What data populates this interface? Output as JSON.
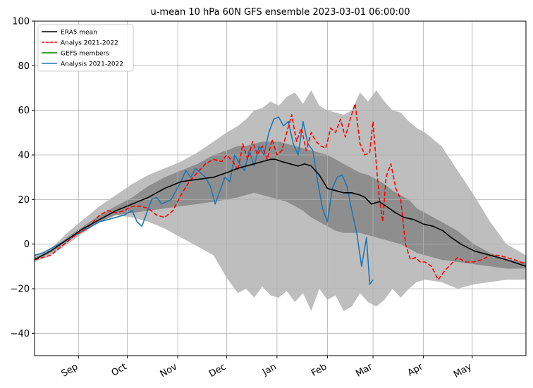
{
  "chart_data": {
    "type": "line",
    "title": "u-mean 10 hPa 60N GFS ensemble 2023-03-01 06:00:00",
    "xlabel": "",
    "ylabel": "",
    "ylim": [
      -50,
      100
    ],
    "xlim": [
      0,
      302
    ],
    "y_ticks": [
      -40,
      -20,
      0,
      20,
      40,
      60,
      80,
      100
    ],
    "x_ticks": [
      {
        "label": "Sep",
        "day": 27
      },
      {
        "label": "Oct",
        "day": 57
      },
      {
        "label": "Nov",
        "day": 88
      },
      {
        "label": "Dec",
        "day": 118
      },
      {
        "label": "Jan",
        "day": 149
      },
      {
        "label": "Feb",
        "day": 180
      },
      {
        "label": "Mar",
        "day": 208
      },
      {
        "label": "Apr",
        "day": 239
      },
      {
        "label": "May",
        "day": 269
      }
    ],
    "grid": true,
    "legend_position": "top-left",
    "legend": [
      {
        "label": "ERA5 mean",
        "color": "#000000",
        "dash": "solid"
      },
      {
        "label": "Analys 2021-2022",
        "color": "#ff0000",
        "dash": "dashed"
      },
      {
        "label": "GEFS members",
        "color": "#008000",
        "dash": "solid"
      },
      {
        "label": "Analysis 2021-2022",
        "color": "#1f77b4",
        "dash": "solid"
      }
    ],
    "bands": [
      {
        "color": "#bebebe",
        "x": [
          0,
          10,
          20,
          30,
          40,
          50,
          60,
          70,
          80,
          90,
          100,
          110,
          118,
          125,
          130,
          135,
          140,
          145,
          150,
          155,
          160,
          165,
          170,
          175,
          180,
          185,
          190,
          195,
          200,
          205,
          210,
          215,
          220,
          225,
          230,
          235,
          240,
          250,
          260,
          270,
          280,
          290,
          302
        ],
        "upper": [
          -5,
          -2,
          5,
          11,
          17,
          22,
          27,
          31,
          34,
          37,
          41,
          46,
          50,
          53,
          56,
          60,
          61,
          64,
          62,
          66,
          68,
          63,
          69,
          62,
          60,
          59,
          58,
          60,
          68,
          64,
          69,
          64,
          60,
          59,
          55,
          52,
          50,
          44,
          33,
          22,
          10,
          0,
          -5
        ],
        "lower": [
          -8,
          -5,
          0,
          5,
          10,
          13,
          12,
          10,
          7,
          3,
          -1,
          -5,
          -15,
          -22,
          -20,
          -24,
          -19,
          -23,
          -24,
          -21,
          -26,
          -22,
          -30,
          -20,
          -25,
          -23,
          -30,
          -28,
          -22,
          -26,
          -28,
          -25,
          -20,
          -24,
          -20,
          -17,
          -16,
          -17,
          -20,
          -18,
          -17,
          -16,
          -16
        ]
      },
      {
        "color": "#8e8e8e",
        "x": [
          0,
          10,
          20,
          30,
          40,
          50,
          60,
          70,
          80,
          90,
          100,
          110,
          118,
          125,
          130,
          135,
          140,
          145,
          150,
          155,
          160,
          165,
          170,
          175,
          180,
          185,
          190,
          195,
          200,
          205,
          210,
          215,
          220,
          225,
          230,
          235,
          240,
          250,
          260,
          270,
          280,
          290,
          302
        ],
        "upper": [
          -6,
          -3,
          3,
          8,
          13,
          17,
          21,
          26,
          30,
          33,
          36,
          40,
          42,
          44,
          44,
          45,
          46,
          46,
          46,
          45,
          44,
          43,
          42,
          41,
          40,
          38,
          36,
          34,
          32,
          31,
          29,
          27,
          24,
          22,
          20,
          16,
          14,
          10,
          6,
          0,
          -4,
          -7,
          -8
        ],
        "lower": [
          -7,
          -4,
          1,
          6,
          10,
          13,
          14,
          15,
          16,
          17,
          18,
          19,
          20,
          21,
          22,
          23,
          22,
          21,
          20,
          19,
          17,
          15,
          12,
          10,
          8,
          6,
          5,
          5,
          5,
          4,
          3,
          2,
          1,
          0,
          -2,
          -4,
          -5,
          -7,
          -8,
          -9,
          -10,
          -11,
          -11
        ]
      }
    ],
    "series": [
      {
        "name": "ERA5 mean",
        "color": "#000000",
        "dash": "solid",
        "x": [
          0,
          10,
          20,
          30,
          40,
          50,
          60,
          70,
          80,
          90,
          100,
          110,
          118,
          125,
          130,
          135,
          140,
          145,
          148,
          152,
          157,
          162,
          166,
          170,
          175,
          180,
          185,
          190,
          195,
          200,
          203,
          207,
          212,
          216,
          222,
          227,
          233,
          239,
          245,
          251,
          256,
          262,
          270,
          280,
          290,
          302
        ],
        "y": [
          -7,
          -3,
          2,
          7,
          11,
          15,
          18,
          21,
          25,
          28,
          29,
          30,
          32,
          34,
          35,
          36,
          37,
          38,
          38,
          37,
          36,
          35,
          36,
          35,
          31,
          25,
          24,
          23,
          23,
          22,
          21,
          18,
          19,
          17,
          14,
          12,
          11,
          9,
          8,
          6,
          3,
          0,
          -3,
          -5,
          -7,
          -10
        ]
      },
      {
        "name": "Analys 2021-2022",
        "color": "#ff0000",
        "dash": "dashed",
        "x": [
          0,
          5,
          10,
          15,
          20,
          25,
          30,
          35,
          40,
          45,
          50,
          55,
          60,
          65,
          70,
          75,
          80,
          85,
          90,
          95,
          100,
          105,
          110,
          115,
          118,
          122,
          125,
          128,
          131,
          134,
          137,
          140,
          143,
          146,
          149,
          152,
          155,
          158,
          161,
          164,
          167,
          170,
          173,
          176,
          179,
          182,
          185,
          188,
          191,
          194,
          197,
          200,
          203,
          206,
          208,
          210,
          212,
          214,
          216,
          219,
          222,
          225,
          228,
          231,
          234,
          237,
          240,
          244,
          248,
          252,
          256,
          260,
          265,
          270,
          275,
          280,
          285,
          290,
          295,
          302
        ],
        "y": [
          -7,
          -6,
          -5,
          -2,
          1,
          4,
          6,
          9,
          13,
          15,
          14,
          15,
          17,
          17,
          16,
          13,
          12,
          15,
          22,
          28,
          32,
          36,
          38,
          37,
          40,
          37,
          33,
          45,
          38,
          46,
          40,
          44,
          38,
          47,
          40,
          42,
          50,
          58,
          46,
          52,
          42,
          50,
          46,
          44,
          43,
          52,
          50,
          56,
          48,
          56,
          63,
          45,
          40,
          41,
          55,
          36,
          20,
          10,
          30,
          36,
          25,
          20,
          0,
          -7,
          -6,
          -8,
          -8,
          -10,
          -16,
          -12,
          -9,
          -6,
          -8,
          -8,
          -7,
          -5,
          -5,
          -6,
          -7,
          -9
        ]
      },
      {
        "name": "Analysis 2021-2022",
        "color": "#1f77b4",
        "dash": "solid",
        "x": [
          0,
          5,
          10,
          15,
          20,
          25,
          30,
          35,
          40,
          45,
          50,
          55,
          60,
          63,
          66,
          69,
          72,
          75,
          78,
          81,
          84,
          87,
          90,
          93,
          96,
          99,
          102,
          105,
          108,
          111,
          114,
          117,
          120,
          123,
          126,
          129,
          132,
          135,
          138,
          141,
          144,
          147,
          150,
          153,
          156,
          159,
          162,
          165,
          168,
          171,
          174,
          177,
          180,
          183,
          186,
          189,
          192,
          195,
          198,
          201,
          204,
          206,
          208
        ],
        "y": [
          -5,
          -4,
          -2,
          0,
          2,
          4,
          6,
          8,
          10,
          11,
          12,
          13,
          15,
          10,
          8,
          14,
          20,
          21,
          18,
          19,
          20,
          24,
          28,
          33,
          30,
          34,
          32,
          30,
          26,
          18,
          24,
          30,
          28,
          40,
          36,
          33,
          42,
          35,
          44,
          40,
          50,
          56,
          57,
          53,
          55,
          45,
          40,
          55,
          45,
          42,
          28,
          16,
          10,
          25,
          30,
          31,
          26,
          15,
          5,
          -10,
          3,
          -18,
          -16
        ]
      },
      {
        "name": "GEFS members",
        "color": "#008000",
        "dash": "solid",
        "x": [],
        "y": []
      }
    ]
  }
}
